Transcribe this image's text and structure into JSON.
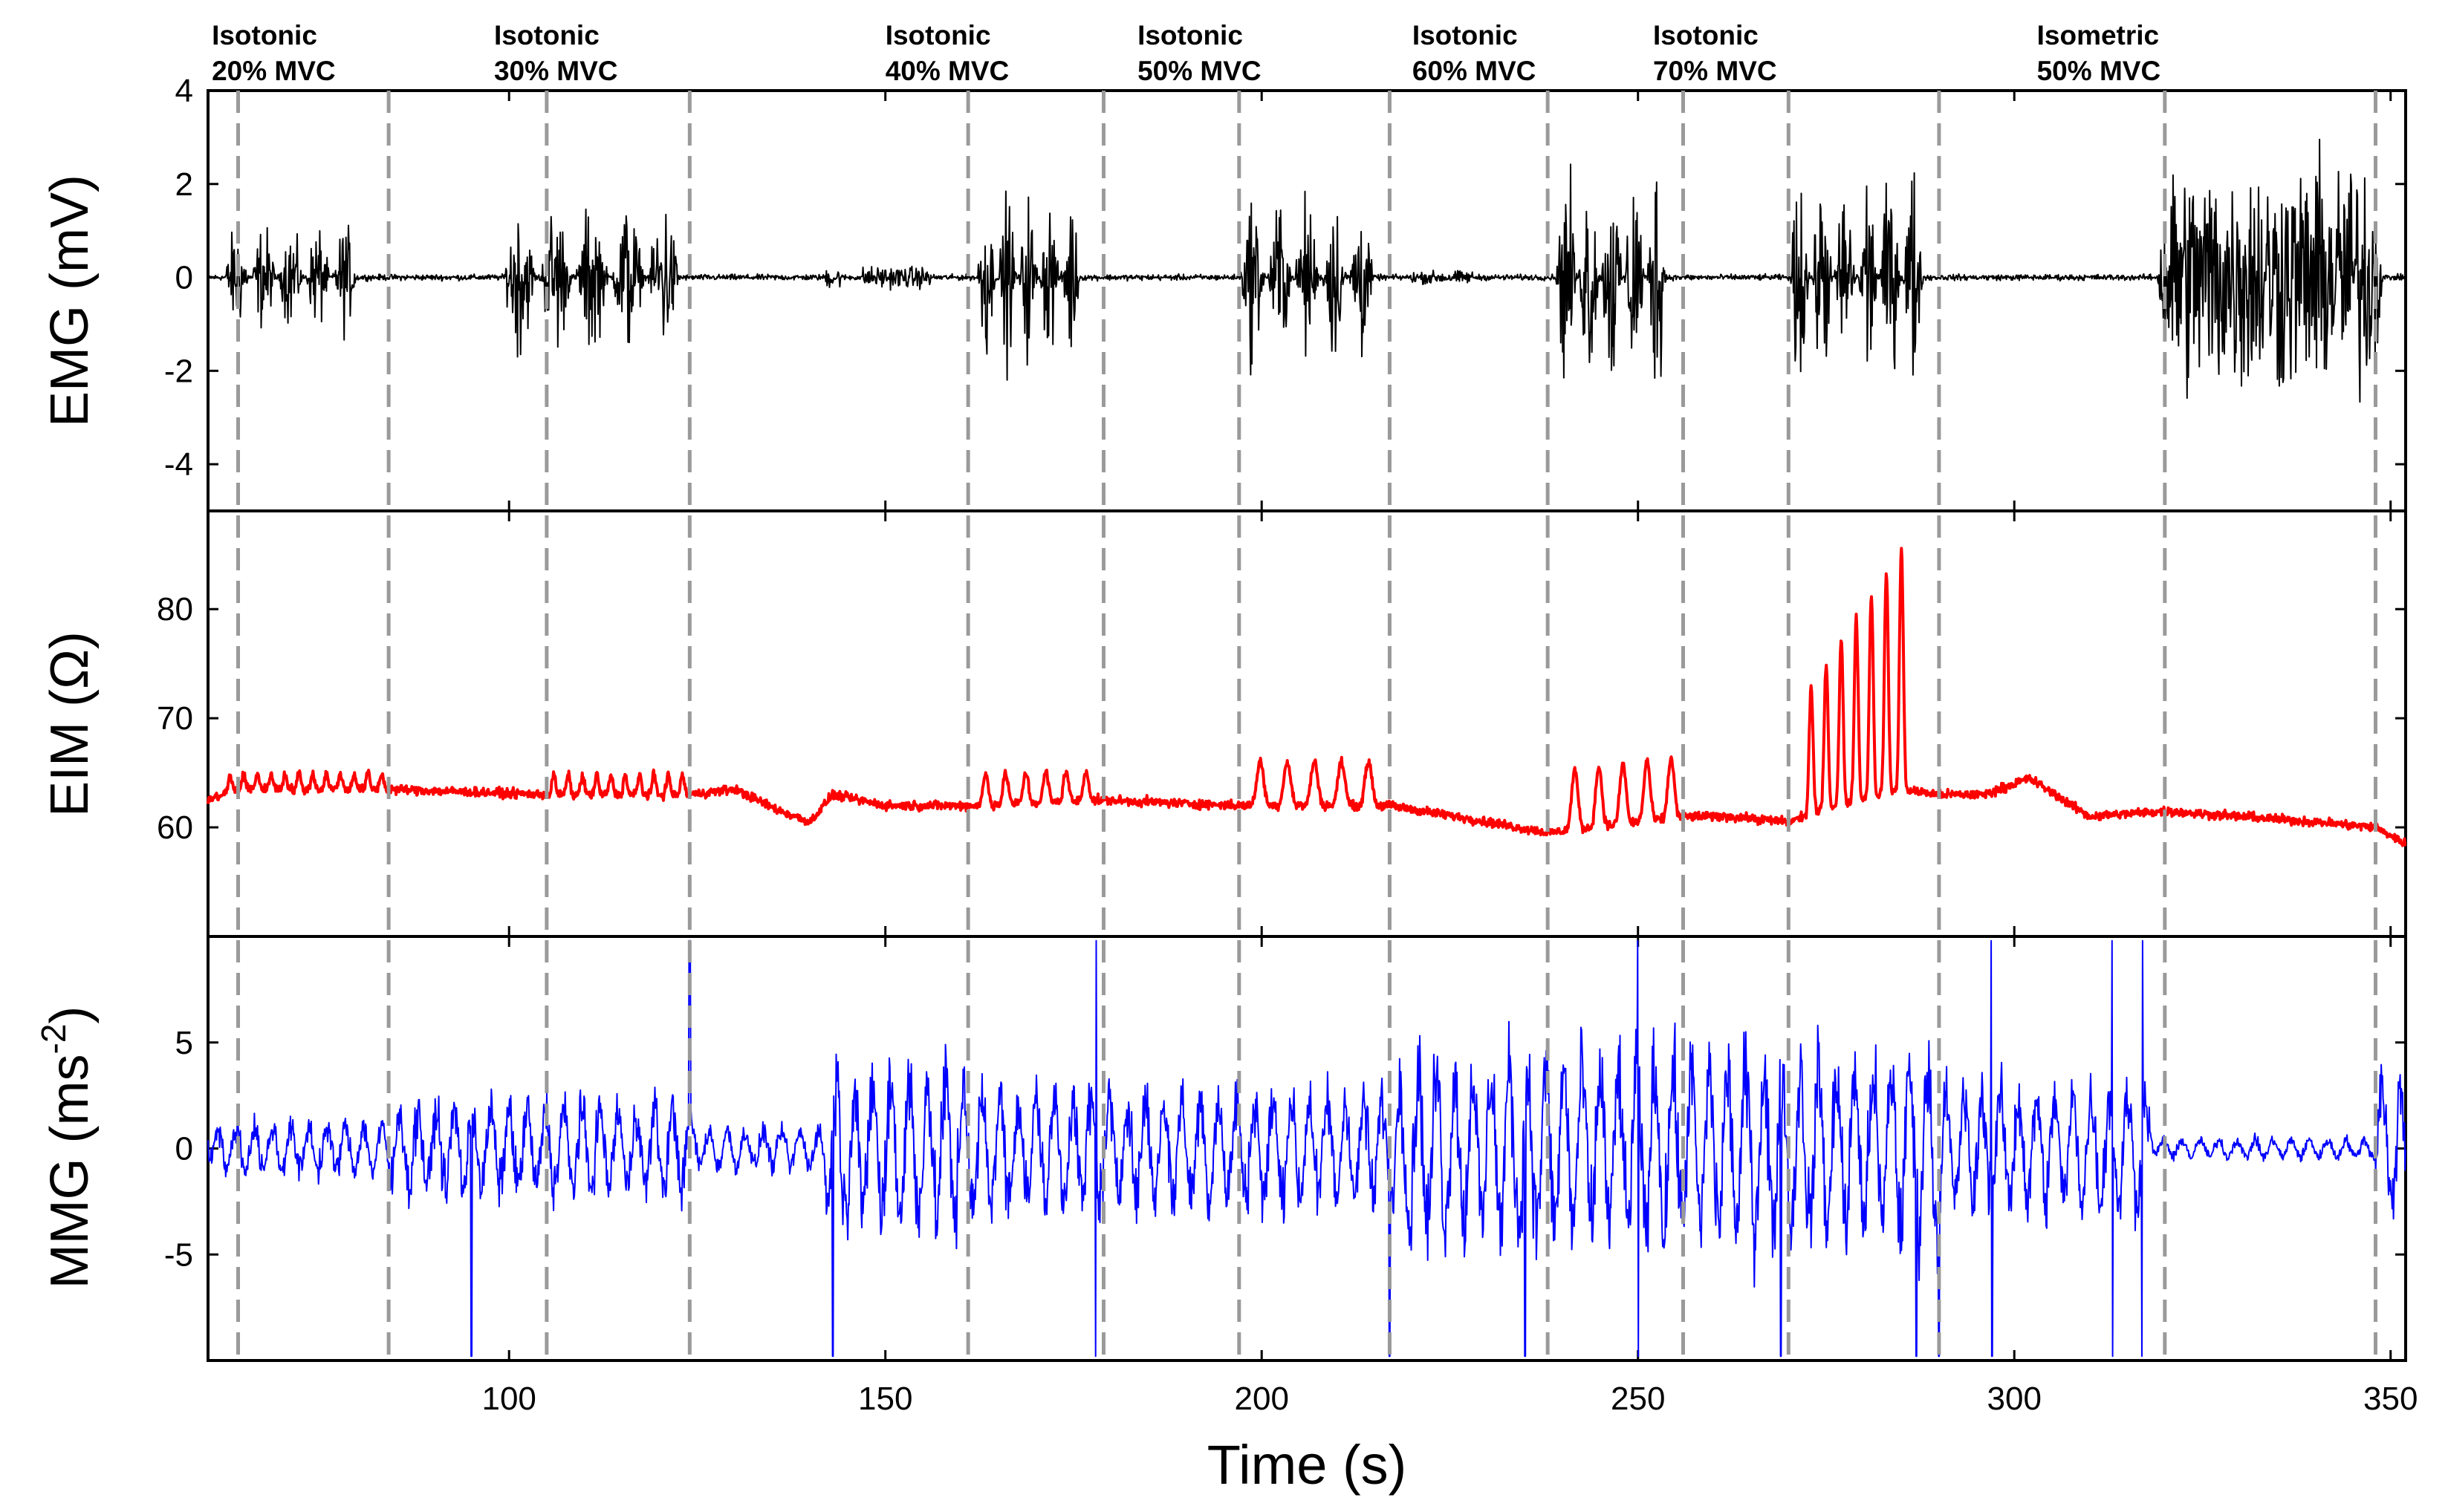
{
  "chart_data": {
    "type": "line",
    "title": "",
    "xlabel": "Time (s)",
    "xlim": [
      60,
      352
    ],
    "x_ticks": [
      100,
      150,
      200,
      250,
      300,
      350
    ],
    "markers_x": [
      64,
      84,
      105,
      124,
      161,
      179,
      197,
      217,
      238,
      256,
      270,
      290,
      320,
      348
    ],
    "phases": [
      {
        "line1": "Isotonic",
        "line2": "20% MVC",
        "x": 60.5
      },
      {
        "line1": "Isotonic",
        "line2": "30% MVC",
        "x": 98
      },
      {
        "line1": "Isotonic",
        "line2": "40% MVC",
        "x": 150
      },
      {
        "line1": "Isotonic",
        "line2": "50% MVC",
        "x": 183.5
      },
      {
        "line1": "Isotonic",
        "line2": "60% MVC",
        "x": 220
      },
      {
        "line1": "Isotonic",
        "line2": "70% MVC",
        "x": 252
      },
      {
        "line1": "Isometric",
        "line2": "50% MVC",
        "x": 303
      }
    ],
    "panels": [
      {
        "name": "emg",
        "ylabel": "EMG (mV)",
        "ylim": [
          -5,
          4
        ],
        "y_ticks": [
          4,
          2,
          0,
          -2,
          -4
        ],
        "y_tick_labels": [
          "4",
          "2",
          "0",
          "-2",
          "-4"
        ],
        "color": "#000000",
        "baseline": 0,
        "noise": 0.07,
        "bursts": [
          {
            "x0": 62,
            "x1": 80,
            "n": 5,
            "amp": 1.3
          },
          {
            "x0": 99,
            "x1": 123,
            "n": 5,
            "amp": 1.9
          },
          {
            "x0": 162,
            "x1": 176,
            "n": 5,
            "amp": 2.0
          },
          {
            "x0": 197,
            "x1": 215,
            "n": 5,
            "amp": 2.0
          },
          {
            "x0": 239,
            "x1": 254,
            "n": 5,
            "amp": 2.9
          },
          {
            "x0": 270,
            "x1": 288,
            "n": 6,
            "amp": 2.7
          },
          {
            "x0": 319,
            "x1": 349,
            "n": 1,
            "amp": 2.7
          }
        ],
        "low_activity": [
          {
            "x0": 142,
            "x1": 144,
            "amp": 0.25
          },
          {
            "x0": 147,
            "x1": 156,
            "amp": 0.25
          },
          {
            "x0": 220,
            "x1": 228,
            "amp": 0.15
          }
        ]
      },
      {
        "name": "eim",
        "ylabel": "EIM (Ω)",
        "ylim": [
          50,
          89
        ],
        "y_ticks": [
          80,
          70,
          60
        ],
        "y_tick_labels": [
          "80",
          "70",
          "60"
        ],
        "color": "#ff0000",
        "trend_x": [
          60,
          64,
          84,
          105,
          124,
          130,
          136,
          140,
          143,
          150,
          161,
          179,
          197,
          205,
          217,
          230,
          238,
          256,
          262,
          270,
          276,
          285,
          290,
          296,
          302,
          310,
          320,
          340,
          348,
          352
        ],
        "trend_y": [
          62.5,
          63.5,
          63.5,
          63.0,
          63.0,
          63.5,
          61.5,
          60.5,
          63.0,
          62.0,
          62.0,
          62.5,
          62.0,
          62.0,
          62.0,
          60.5,
          59.5,
          61.0,
          61.0,
          60.5,
          62.0,
          63.5,
          63.0,
          63.0,
          64.5,
          61.0,
          61.5,
          60.5,
          60.0,
          58.5
        ],
        "spikes": [
          {
            "x0": 62,
            "x1": 84,
            "n": 12,
            "amp": 1.5
          },
          {
            "x0": 105,
            "x1": 124,
            "n": 10,
            "amp": 1.8
          },
          {
            "x0": 162,
            "x1": 178,
            "n": 6,
            "amp": 2.8
          },
          {
            "x0": 198,
            "x1": 216,
            "n": 5,
            "amp": 4.0
          },
          {
            "x0": 240,
            "x1": 256,
            "n": 5,
            "amp": 5.5
          },
          {
            "x0": 272,
            "x1": 286,
            "n": 7,
            "amp": 22
          }
        ]
      },
      {
        "name": "mmg",
        "ylabel": "MMG (ms-2)",
        "ylabel_main": "MMG (ms",
        "ylabel_sup": "-2",
        "ylabel_end": ")",
        "ylim": [
          -10,
          10
        ],
        "y_ticks": [
          5,
          0,
          -5
        ],
        "y_tick_labels": [
          "5",
          "0",
          "-5"
        ],
        "color": "#0000ff",
        "activity": [
          {
            "x0": 60,
            "x1": 84,
            "amp": 1.0
          },
          {
            "x0": 84,
            "x1": 124,
            "amp": 1.8
          },
          {
            "x0": 124,
            "x1": 142,
            "amp": 0.8
          },
          {
            "x0": 142,
            "x1": 162,
            "amp": 3.2
          },
          {
            "x0": 162,
            "x1": 218,
            "amp": 2.3
          },
          {
            "x0": 218,
            "x1": 290,
            "amp": 3.6
          },
          {
            "x0": 290,
            "x1": 318,
            "amp": 2.4
          },
          {
            "x0": 320,
            "x1": 348,
            "amp": 0.4
          },
          {
            "x0": 348,
            "x1": 352,
            "amp": 2.8
          }
        ],
        "outliers_x": [
          95,
          124,
          143,
          178,
          217,
          235,
          250,
          269,
          287,
          290,
          297,
          313,
          317
        ]
      }
    ]
  }
}
